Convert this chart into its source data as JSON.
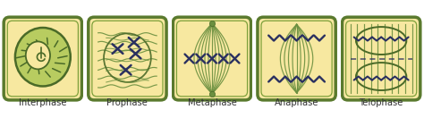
{
  "stages": [
    "Interphase",
    "Prophase",
    "Metaphase",
    "Anaphase",
    "Telophase"
  ],
  "bg": "#ffffff",
  "cell_fill": "#f7e8a0",
  "cell_outer_color": "#5a7a2e",
  "cell_inner_color": "#7da03a",
  "nucleus_fill": "#b8cc60",
  "nucleus_border": "#4a6a28",
  "spindle_color": "#6b9040",
  "chrom_color": "#2a3060",
  "label_color": "#333333",
  "label_fs": 7.2
}
